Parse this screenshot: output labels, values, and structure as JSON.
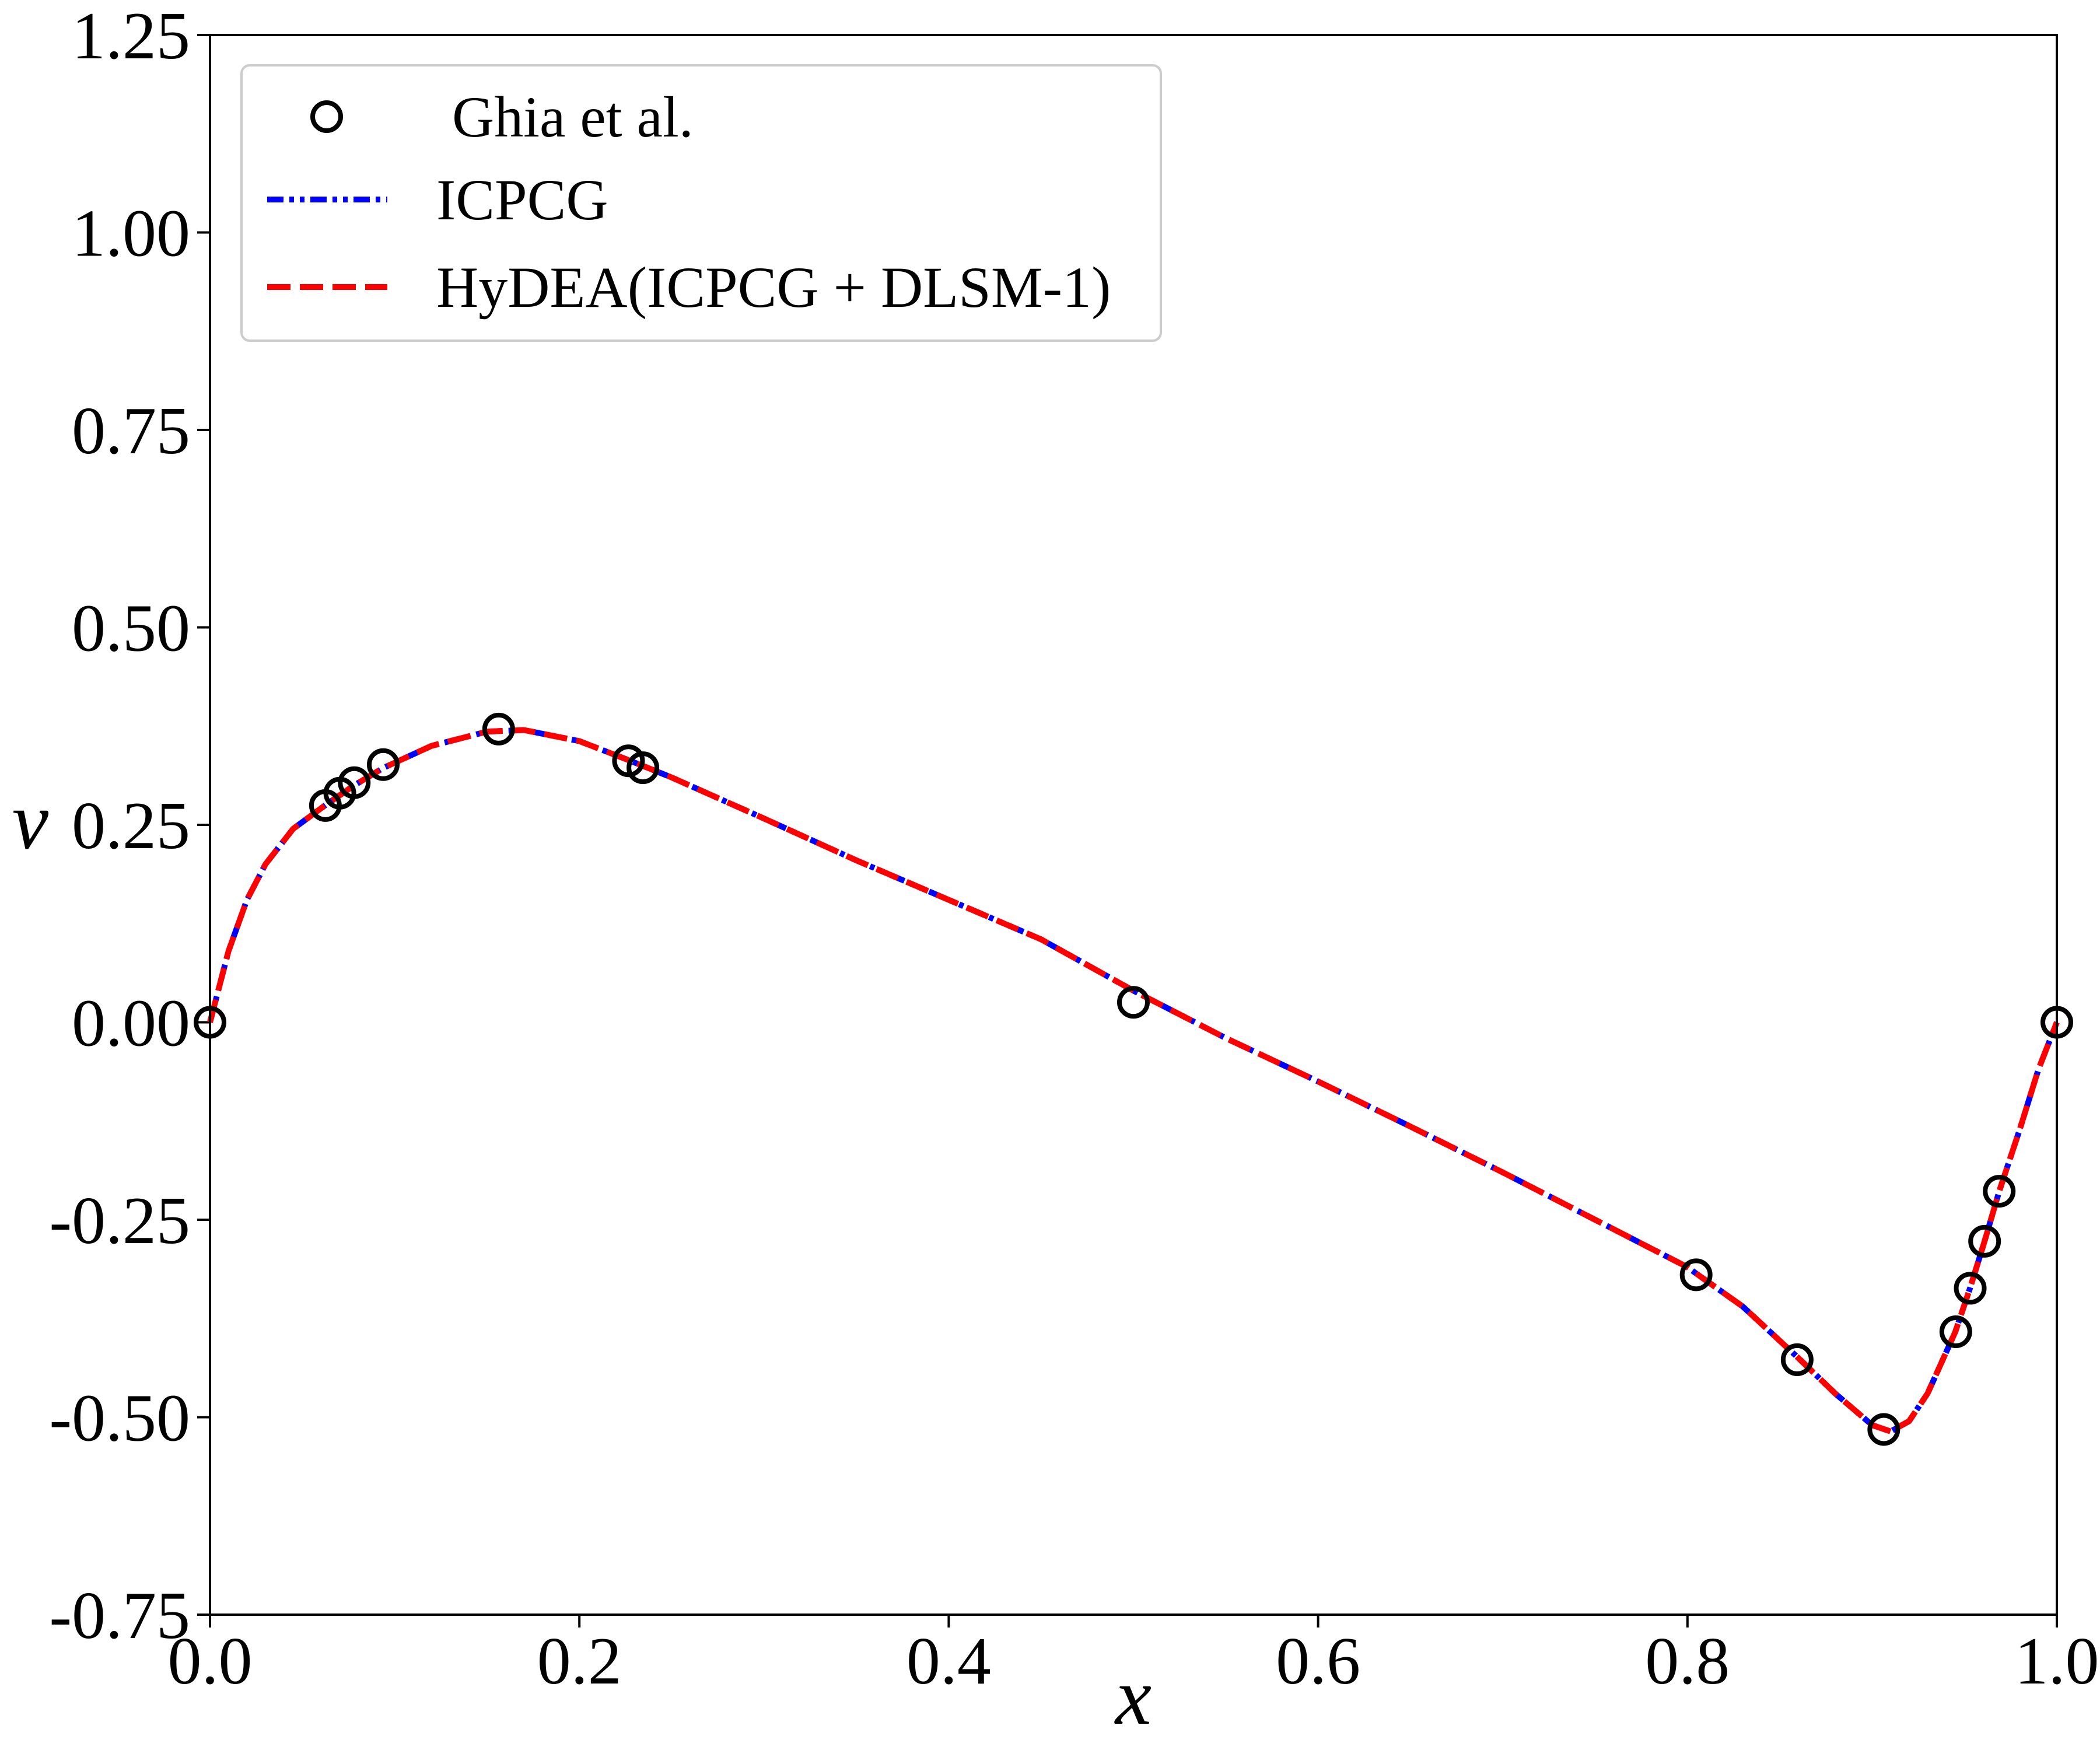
{
  "chart_data": {
    "type": "line",
    "xlabel": "x",
    "ylabel": "v",
    "xlim": [
      0.0,
      1.0
    ],
    "ylim": [
      -0.75,
      1.25
    ],
    "x_ticks": [
      "0.0",
      "0.2",
      "0.4",
      "0.6",
      "0.8",
      "1.0"
    ],
    "y_ticks": [
      "1.25",
      "1.00",
      "0.75",
      "0.50",
      "0.25",
      "0.00",
      "-0.25",
      "-0.50",
      "-0.75"
    ],
    "grid": false,
    "legend_position": "top-left",
    "series": [
      {
        "name": "Ghia et al.",
        "style": "markers",
        "marker": "open-circle",
        "color": "#000000",
        "x": [
          0.0,
          0.0625,
          0.0703,
          0.0781,
          0.0938,
          0.1563,
          0.2266,
          0.2344,
          0.5,
          0.8047,
          0.8594,
          0.9063,
          0.9453,
          0.9531,
          0.9609,
          0.9688,
          1.0
        ],
        "y": [
          0.0,
          0.2745,
          0.2901,
          0.3034,
          0.3263,
          0.3712,
          0.3311,
          0.3223,
          0.0253,
          -0.3197,
          -0.4272,
          -0.5155,
          -0.3918,
          -0.3367,
          -0.2772,
          -0.2139,
          0.0
        ]
      },
      {
        "name": "ICPCG",
        "style": "dash-dot-dot",
        "color": "#0000ff",
        "x": [
          0.0,
          0.01,
          0.02,
          0.03,
          0.045,
          0.0625,
          0.0781,
          0.0938,
          0.12,
          0.15,
          0.17,
          0.2,
          0.2266,
          0.25,
          0.3,
          0.35,
          0.4,
          0.45,
          0.5,
          0.55,
          0.6,
          0.65,
          0.7,
          0.75,
          0.8,
          0.8047,
          0.83,
          0.86,
          0.88,
          0.9,
          0.91,
          0.92,
          0.93,
          0.945,
          0.9531,
          0.9609,
          0.9688,
          0.98,
          0.99,
          1.0
        ],
        "y": [
          0.0,
          0.09,
          0.155,
          0.2,
          0.245,
          0.275,
          0.3,
          0.322,
          0.35,
          0.368,
          0.37,
          0.356,
          0.332,
          0.31,
          0.258,
          0.205,
          0.155,
          0.105,
          0.04,
          -0.02,
          -0.075,
          -0.132,
          -0.19,
          -0.25,
          -0.31,
          -0.318,
          -0.36,
          -0.425,
          -0.47,
          -0.51,
          -0.518,
          -0.505,
          -0.47,
          -0.392,
          -0.336,
          -0.277,
          -0.214,
          -0.135,
          -0.06,
          0.0
        ]
      },
      {
        "name": "HyDEA(ICPCG + DLSM-1)",
        "style": "dashed",
        "color": "#ff0000",
        "x": [
          0.0,
          0.01,
          0.02,
          0.03,
          0.045,
          0.0625,
          0.0781,
          0.0938,
          0.12,
          0.15,
          0.17,
          0.2,
          0.2266,
          0.25,
          0.3,
          0.35,
          0.4,
          0.45,
          0.5,
          0.55,
          0.6,
          0.65,
          0.7,
          0.75,
          0.8,
          0.8047,
          0.83,
          0.86,
          0.88,
          0.9,
          0.91,
          0.92,
          0.93,
          0.945,
          0.9531,
          0.9609,
          0.9688,
          0.98,
          0.99,
          1.0
        ],
        "y": [
          0.0,
          0.09,
          0.155,
          0.2,
          0.245,
          0.275,
          0.3,
          0.322,
          0.35,
          0.368,
          0.37,
          0.356,
          0.332,
          0.31,
          0.258,
          0.205,
          0.155,
          0.105,
          0.04,
          -0.02,
          -0.075,
          -0.132,
          -0.19,
          -0.25,
          -0.31,
          -0.318,
          -0.36,
          -0.425,
          -0.47,
          -0.51,
          -0.518,
          -0.505,
          -0.47,
          -0.392,
          -0.336,
          -0.277,
          -0.214,
          -0.135,
          -0.06,
          0.0
        ]
      }
    ]
  }
}
